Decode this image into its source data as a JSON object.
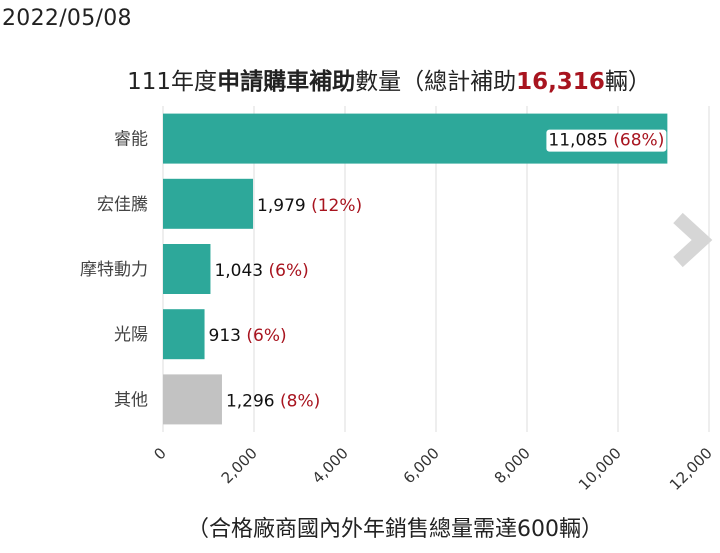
{
  "date": "2022/05/08",
  "title": {
    "prefix": "111年度",
    "bold": "申請購車補助",
    "mid": "數量（總計補助",
    "total": "16,316",
    "suffix": "輛）"
  },
  "footnote": "（合格廠商國內外年銷售總量需達600輛）",
  "colors": {
    "primary": "#2da89a",
    "other": "#c2c2c2",
    "pct": "#a8141f",
    "grid": "#e3e3e3"
  },
  "chart_data": {
    "type": "bar",
    "orientation": "horizontal",
    "categories": [
      "睿能",
      "宏佳騰",
      "摩特動力",
      "光陽",
      "其他"
    ],
    "values": [
      11085,
      1979,
      1043,
      913,
      1296
    ],
    "value_labels": [
      "11,085",
      "1,979",
      "1,043",
      "913",
      "1,296"
    ],
    "pct_labels": [
      "(68%)",
      "(12%)",
      "(6%)",
      "(6%)",
      "(8%)"
    ],
    "xlim": [
      0,
      12000
    ],
    "xticks": [
      "0",
      "2,000",
      "4,000",
      "6,000",
      "8,000",
      "10,000",
      "12,000"
    ],
    "grid": true
  }
}
